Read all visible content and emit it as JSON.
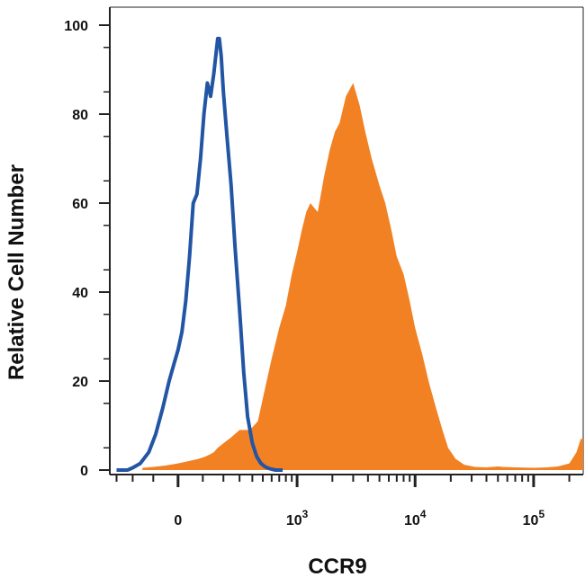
{
  "chart_data": {
    "type": "area",
    "title": "",
    "xlabel": "CCR9",
    "ylabel": "Relative Cell Number",
    "x_scale": "biexponential",
    "ylim": [
      0,
      100
    ],
    "grid": false,
    "legend": "none",
    "y_ticks": [
      {
        "value": 0,
        "label": "0"
      },
      {
        "value": 20,
        "label": "20"
      },
      {
        "value": 40,
        "label": "40"
      },
      {
        "value": 60,
        "label": "60"
      },
      {
        "value": 80,
        "label": "80"
      },
      {
        "value": 100,
        "label": "100"
      }
    ],
    "x_ticks": [
      {
        "value": 0,
        "base": "0",
        "exp": ""
      },
      {
        "value": 1000,
        "base": "10",
        "exp": "3"
      },
      {
        "value": 10000,
        "base": "10",
        "exp": "4"
      },
      {
        "value": 100000,
        "base": "10",
        "exp": "5"
      }
    ],
    "series": [
      {
        "color": "#f28123",
        "style": "filled",
        "x": [
          -150,
          -100,
          -50,
          0,
          40,
          80,
          110,
          130,
          150,
          170,
          200,
          250,
          300,
          380,
          450,
          520,
          600,
          700,
          800,
          900,
          1000,
          1100,
          1200,
          1300,
          1500,
          1700,
          1900,
          2100,
          2300,
          2600,
          3000,
          3400,
          3800,
          4300,
          5000,
          5600,
          6300,
          7000,
          8000,
          9000,
          10000,
          11500,
          13000,
          15000,
          17000,
          19000,
          22000,
          26000,
          32000,
          40000,
          50000,
          55000,
          70000,
          100000,
          130000,
          160000,
          200000,
          230000,
          250000,
          262000
        ],
        "y": [
          0.5,
          0.7,
          1,
          1.5,
          2,
          2.5,
          3,
          3.5,
          4,
          5,
          6,
          7.5,
          9,
          9,
          11,
          18,
          25,
          32,
          37,
          44,
          49,
          54,
          58,
          60,
          58,
          66,
          72,
          76,
          78,
          84,
          87,
          82,
          76,
          70,
          64,
          60,
          54,
          48,
          44,
          38,
          32,
          26,
          20,
          14,
          9,
          5,
          2.5,
          1.2,
          0.7,
          0.6,
          0.8,
          0.7,
          0.6,
          0.5,
          0.6,
          0.8,
          1.5,
          4,
          7,
          7
        ]
      },
      {
        "color": "#2255a4",
        "style": "line",
        "x": [
          -300,
          -230,
          -200,
          -160,
          -120,
          -90,
          -60,
          -35,
          -15,
          0,
          15,
          30,
          45,
          60,
          75,
          90,
          105,
          120,
          135,
          150,
          160,
          170,
          178,
          188,
          200,
          220,
          245,
          270,
          300,
          330,
          360,
          400,
          440,
          480,
          520,
          560,
          600,
          650,
          700,
          750
        ],
        "y": [
          0,
          0,
          0.5,
          1.5,
          4,
          8,
          14,
          20,
          24,
          27,
          31,
          38,
          48,
          60,
          62,
          70,
          80,
          87,
          84,
          89,
          93,
          97,
          97,
          93,
          85,
          75,
          64,
          50,
          36,
          22,
          12,
          6,
          3,
          1.5,
          0.8,
          0.4,
          0.2,
          0,
          0,
          0
        ]
      }
    ]
  }
}
